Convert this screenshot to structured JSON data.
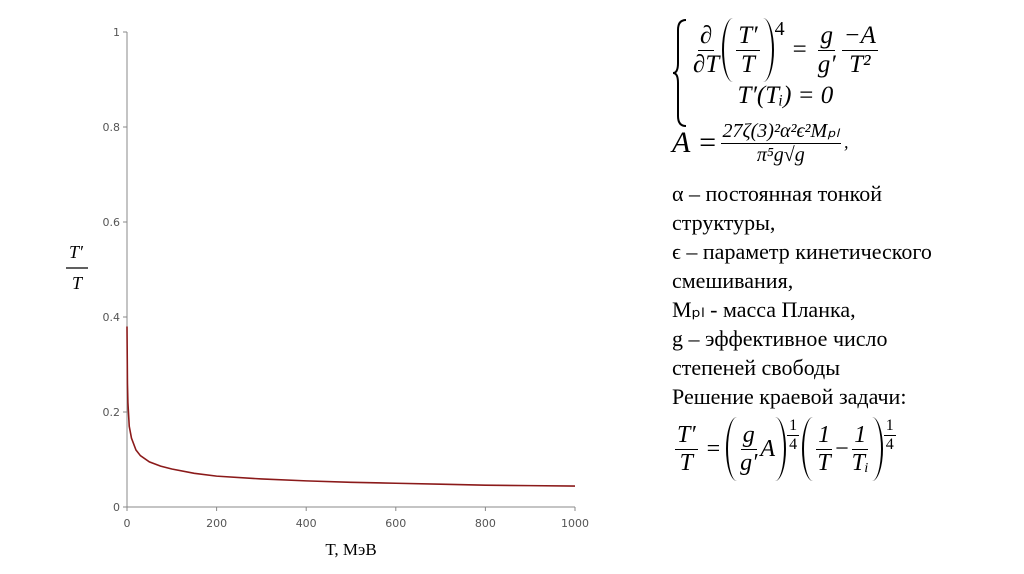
{
  "chart_data": {
    "type": "line",
    "x": [
      0,
      1,
      2,
      5,
      10,
      20,
      30,
      50,
      75,
      100,
      150,
      200,
      300,
      400,
      500,
      600,
      700,
      800,
      900,
      1000
    ],
    "values": [
      0.38,
      0.26,
      0.22,
      0.17,
      0.145,
      0.12,
      0.108,
      0.095,
      0.086,
      0.08,
      0.071,
      0.065,
      0.059,
      0.055,
      0.052,
      0.05,
      0.048,
      0.046,
      0.045,
      0.044
    ],
    "color": "#8b1a1a",
    "xlim": [
      0,
      1000
    ],
    "xticks": [
      0,
      200,
      400,
      600,
      800,
      1000
    ],
    "ylim": [
      0,
      1
    ],
    "yticks": [
      0,
      0.2,
      0.4,
      0.6,
      0.8,
      1
    ],
    "x_label": "T, МэВ",
    "y_label_numerator": "T′",
    "y_label_denominator": "T"
  },
  "formulas": {
    "system": {
      "d_num": "∂",
      "d_den": "∂T",
      "in_num": "T′",
      "in_den": "T",
      "power": "4",
      "equals": "=",
      "g_num": "g",
      "g_den": "g′",
      "a_num": "−A",
      "a_den": "T²",
      "condition": "T′(Tᵢ) = 0"
    },
    "a_def": {
      "lhs": "A =",
      "numerator": "27ζ(3)²α²ϵ²Mₚₗ",
      "denominator": "π⁵g√g",
      "tail": ","
    },
    "solution": {
      "l_num": "T′",
      "l_den": "T",
      "equals": "=",
      "g_num": "g",
      "g_den": "g′",
      "a": "A",
      "p_num": "1",
      "p_den": "4",
      "o_num": "1",
      "o_den": "T",
      "minus": "−",
      "i_num": "1",
      "i_den": "Tᵢ",
      "q_num": "1",
      "q_den": "4"
    }
  },
  "notes": [
    "α – постоянная тонкой",
    "структуры,",
    "ϵ – параметр кинетического",
    "смешивания,",
    "Mₚₗ - масса Планка,",
    "g – эффективное число",
    "степеней свободы",
    "Решение краевой задачи:"
  ]
}
